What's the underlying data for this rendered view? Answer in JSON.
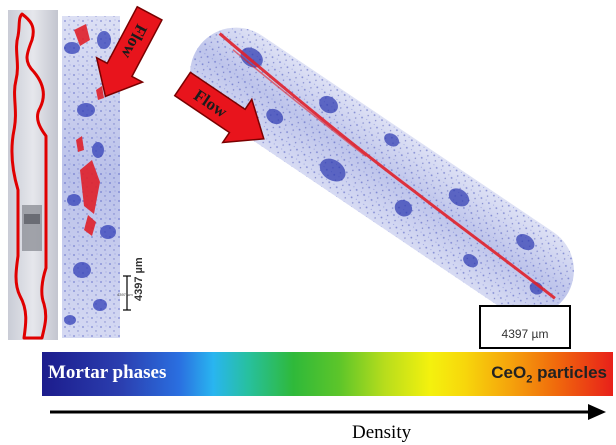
{
  "labels": {
    "flow_top": "Flow",
    "flow_middle": "Flow",
    "mortar_phases": "Mortar phases",
    "ceo2_main": "CeO",
    "ceo2_sub": "2",
    "ceo2_tail": " particles",
    "density": "Density",
    "scale_vertical": "4397 µm",
    "scale_tiny": "4397 µm",
    "scale_box": "4397 µm"
  },
  "colors": {
    "arrow_red": "#e8141c",
    "sample_blue": "#3f4fc0",
    "outline_red": "#e00000",
    "black": "#000000"
  }
}
